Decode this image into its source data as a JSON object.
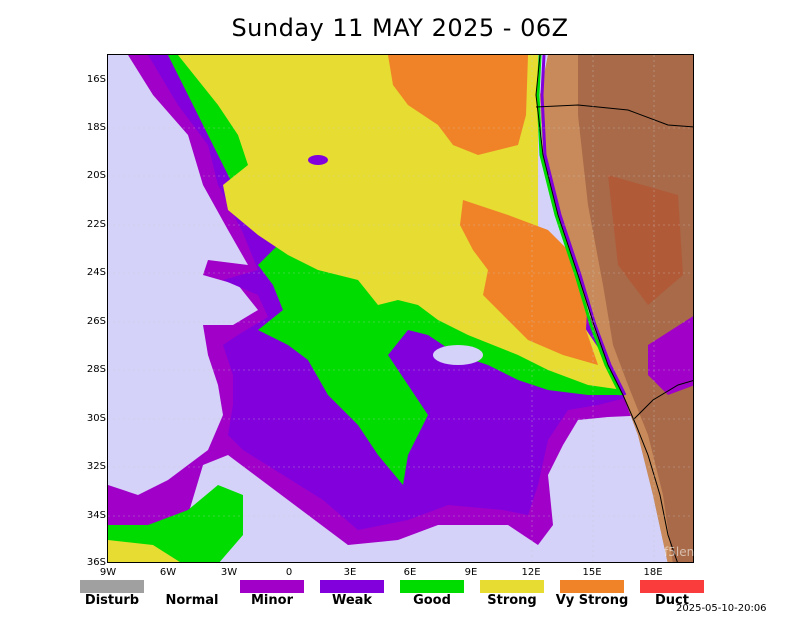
{
  "title": "Sunday 11 MAY 2025 - 06Z",
  "lat_labels": [
    "16S",
    "18S",
    "20S",
    "22S",
    "24S",
    "26S",
    "28S",
    "30S",
    "32S",
    "34S",
    "36S"
  ],
  "lon_labels": [
    "9W",
    "6W",
    "3W",
    "0",
    "3E",
    "6E",
    "9E",
    "12E",
    "15E",
    "18E"
  ],
  "legend": [
    {
      "label": "Disturb",
      "color": "#a0a0a0"
    },
    {
      "label": "Normal",
      "color": "#ffffff"
    },
    {
      "label": "Minor",
      "color": "#a000c8"
    },
    {
      "label": "Weak",
      "color": "#8200dc"
    },
    {
      "label": "Good",
      "color": "#00dc00"
    },
    {
      "label": "Strong",
      "color": "#e6dc32"
    },
    {
      "label": "Vy Strong",
      "color": "#f08228"
    },
    {
      "label": "Duct",
      "color": "#fa3c3c"
    }
  ],
  "timestamp": "2025-05-10-20:06",
  "watermark": "f5len"
}
